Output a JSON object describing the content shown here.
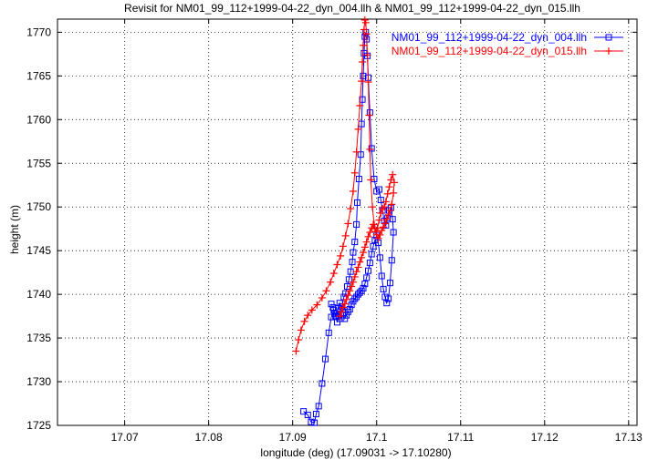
{
  "chart_data": {
    "type": "scatter",
    "title": "Revisit for NM01_99_112+1999-04-22_dyn_004.llh & NM01_99_112+1999-04-22_dyn_015.llh",
    "xlabel": "longitude (deg) (17.09031 -> 17.10280)",
    "ylabel": "height (m)",
    "xlim": [
      17.062,
      17.131
    ],
    "ylim": [
      1725,
      1771.5
    ],
    "x_ticks": [
      17.07,
      17.08,
      17.09,
      17.1,
      17.11,
      17.12,
      17.13
    ],
    "x_tick_labels": [
      "17.07",
      "17.08",
      "17.09",
      "17.1",
      "17.11",
      "17.12",
      "17.13"
    ],
    "y_ticks": [
      1725,
      1730,
      1735,
      1740,
      1745,
      1750,
      1755,
      1760,
      1765,
      1770
    ],
    "y_tick_labels": [
      "1725",
      "1730",
      "1735",
      "1740",
      "1745",
      "1750",
      "1755",
      "1760",
      "1765",
      "1770"
    ],
    "grid": true,
    "legend_position": "top-right",
    "series": [
      {
        "name": "NM01_99_112+1999-04-22_dyn_004.llh",
        "color": "#0000ff",
        "marker": "square",
        "x": [
          17.0913,
          17.0918,
          17.0922,
          17.0926,
          17.0928,
          17.0931,
          17.0935,
          17.0939,
          17.0943,
          17.0946,
          17.0949,
          17.0951,
          17.0953,
          17.0955,
          17.0957,
          17.0959,
          17.0961,
          17.0963,
          17.0965,
          17.0967,
          17.0969,
          17.0971,
          17.0972,
          17.0974,
          17.0976,
          17.0977,
          17.0979,
          17.0981,
          17.0982,
          17.0983,
          17.0984,
          17.0985,
          17.0986,
          17.0987,
          17.0988,
          17.0989,
          17.099,
          17.0992,
          17.0994,
          17.0997,
          17.1,
          17.1003,
          17.1005,
          17.1007,
          17.1009,
          17.1011,
          17.1013,
          17.1015,
          17.1017,
          17.1019,
          17.102,
          17.1018,
          17.1016,
          17.1014,
          17.1012,
          17.101,
          17.1008,
          17.1006,
          17.1004,
          17.1002,
          17.1,
          17.0998,
          17.0996,
          17.0994,
          17.0992,
          17.099,
          17.0988,
          17.0986,
          17.0984,
          17.0982,
          17.098,
          17.0978,
          17.0976,
          17.0974,
          17.0972,
          17.097,
          17.0968,
          17.0966,
          17.0964,
          17.0962,
          17.096,
          17.0958,
          17.0956,
          17.0954,
          17.0952,
          17.095,
          17.0948,
          17.0946
        ],
        "y": [
          1726.6,
          1726.2,
          1725.4,
          1725.3,
          1726.3,
          1727.2,
          1729.8,
          1732.6,
          1735.6,
          1737.4,
          1738.2,
          1737.5,
          1736.8,
          1737.6,
          1737.2,
          1738.6,
          1739.7,
          1740.1,
          1740.9,
          1741.7,
          1742.6,
          1743.7,
          1744.8,
          1746.0,
          1748.0,
          1750.5,
          1753.2,
          1756.0,
          1759.5,
          1762.3,
          1765.0,
          1767.6,
          1769.5,
          1770.0,
          1769.2,
          1767.3,
          1764.8,
          1760.8,
          1756.7,
          1753.2,
          1751.8,
          1752.0,
          1750.8,
          1749.6,
          1748.4,
          1747.9,
          1748.7,
          1749.6,
          1749.9,
          1748.6,
          1747.1,
          1743.9,
          1741.3,
          1739.5,
          1739.0,
          1739.7,
          1740.6,
          1742.1,
          1744.2,
          1745.9,
          1746.7,
          1746.2,
          1745.5,
          1744.6,
          1743.6,
          1742.7,
          1741.9,
          1741.2,
          1740.7,
          1740.4,
          1740.2,
          1740.0,
          1739.7,
          1739.5,
          1739.2,
          1738.8,
          1738.3,
          1738.0,
          1737.6,
          1737.2,
          1737.9,
          1738.6,
          1739.0,
          1738.4,
          1737.5,
          1737.8,
          1738.5,
          1738.9
        ]
      },
      {
        "name": "NM01_99_112+1999-04-22_dyn_015.llh",
        "color": "#ff0000",
        "marker": "plus",
        "x": [
          17.0904,
          17.0907,
          17.091,
          17.0914,
          17.0918,
          17.0923,
          17.0929,
          17.0935,
          17.094,
          17.0945,
          17.0949,
          17.0953,
          17.0957,
          17.096,
          17.0963,
          17.0966,
          17.0969,
          17.0972,
          17.0974,
          17.0976,
          17.0978,
          17.098,
          17.0982,
          17.0983,
          17.0984,
          17.0985,
          17.0986,
          17.0987,
          17.0988,
          17.0989,
          17.099,
          17.0991,
          17.0992,
          17.0993,
          17.0995,
          17.0997,
          17.0999,
          17.1001,
          17.1003,
          17.1005,
          17.1007,
          17.1009,
          17.1011,
          17.1013,
          17.1015,
          17.1017,
          17.1019,
          17.1021,
          17.102,
          17.1018,
          17.1016,
          17.1014,
          17.1012,
          17.101,
          17.1008,
          17.1006,
          17.1004,
          17.1002,
          17.1,
          17.0998,
          17.0996,
          17.0994,
          17.0992,
          17.099,
          17.0988,
          17.0986,
          17.0984,
          17.0982,
          17.098,
          17.0978,
          17.0976,
          17.0974,
          17.0972,
          17.097,
          17.0968,
          17.0966,
          17.0964,
          17.0962,
          17.096,
          17.0958,
          17.0956
        ],
        "y": [
          1733.5,
          1734.8,
          1735.9,
          1736.9,
          1737.6,
          1738.2,
          1738.8,
          1739.6,
          1740.4,
          1741.4,
          1742.4,
          1743.4,
          1744.4,
          1745.5,
          1746.7,
          1748.1,
          1749.8,
          1751.8,
          1753.9,
          1756.3,
          1758.9,
          1761.6,
          1764.4,
          1766.6,
          1768.5,
          1770.3,
          1771.4,
          1771.1,
          1769.8,
          1767.4,
          1764.3,
          1760.5,
          1756.6,
          1753.1,
          1750.0,
          1748.0,
          1747.2,
          1747.6,
          1748.5,
          1749.3,
          1749.8,
          1750.0,
          1750.6,
          1751.5,
          1752.3,
          1753.1,
          1753.7,
          1752.8,
          1751.6,
          1750.3,
          1749.6,
          1749.1,
          1748.6,
          1748.1,
          1747.7,
          1747.3,
          1746.8,
          1746.4,
          1746.8,
          1747.5,
          1748.0,
          1747.6,
          1747.1,
          1746.6,
          1746.0,
          1745.4,
          1744.8,
          1744.2,
          1743.7,
          1743.1,
          1742.6,
          1742.0,
          1741.4,
          1740.9,
          1740.4,
          1739.9,
          1739.4,
          1738.9,
          1738.5,
          1738.0,
          1737.5
        ]
      }
    ]
  }
}
